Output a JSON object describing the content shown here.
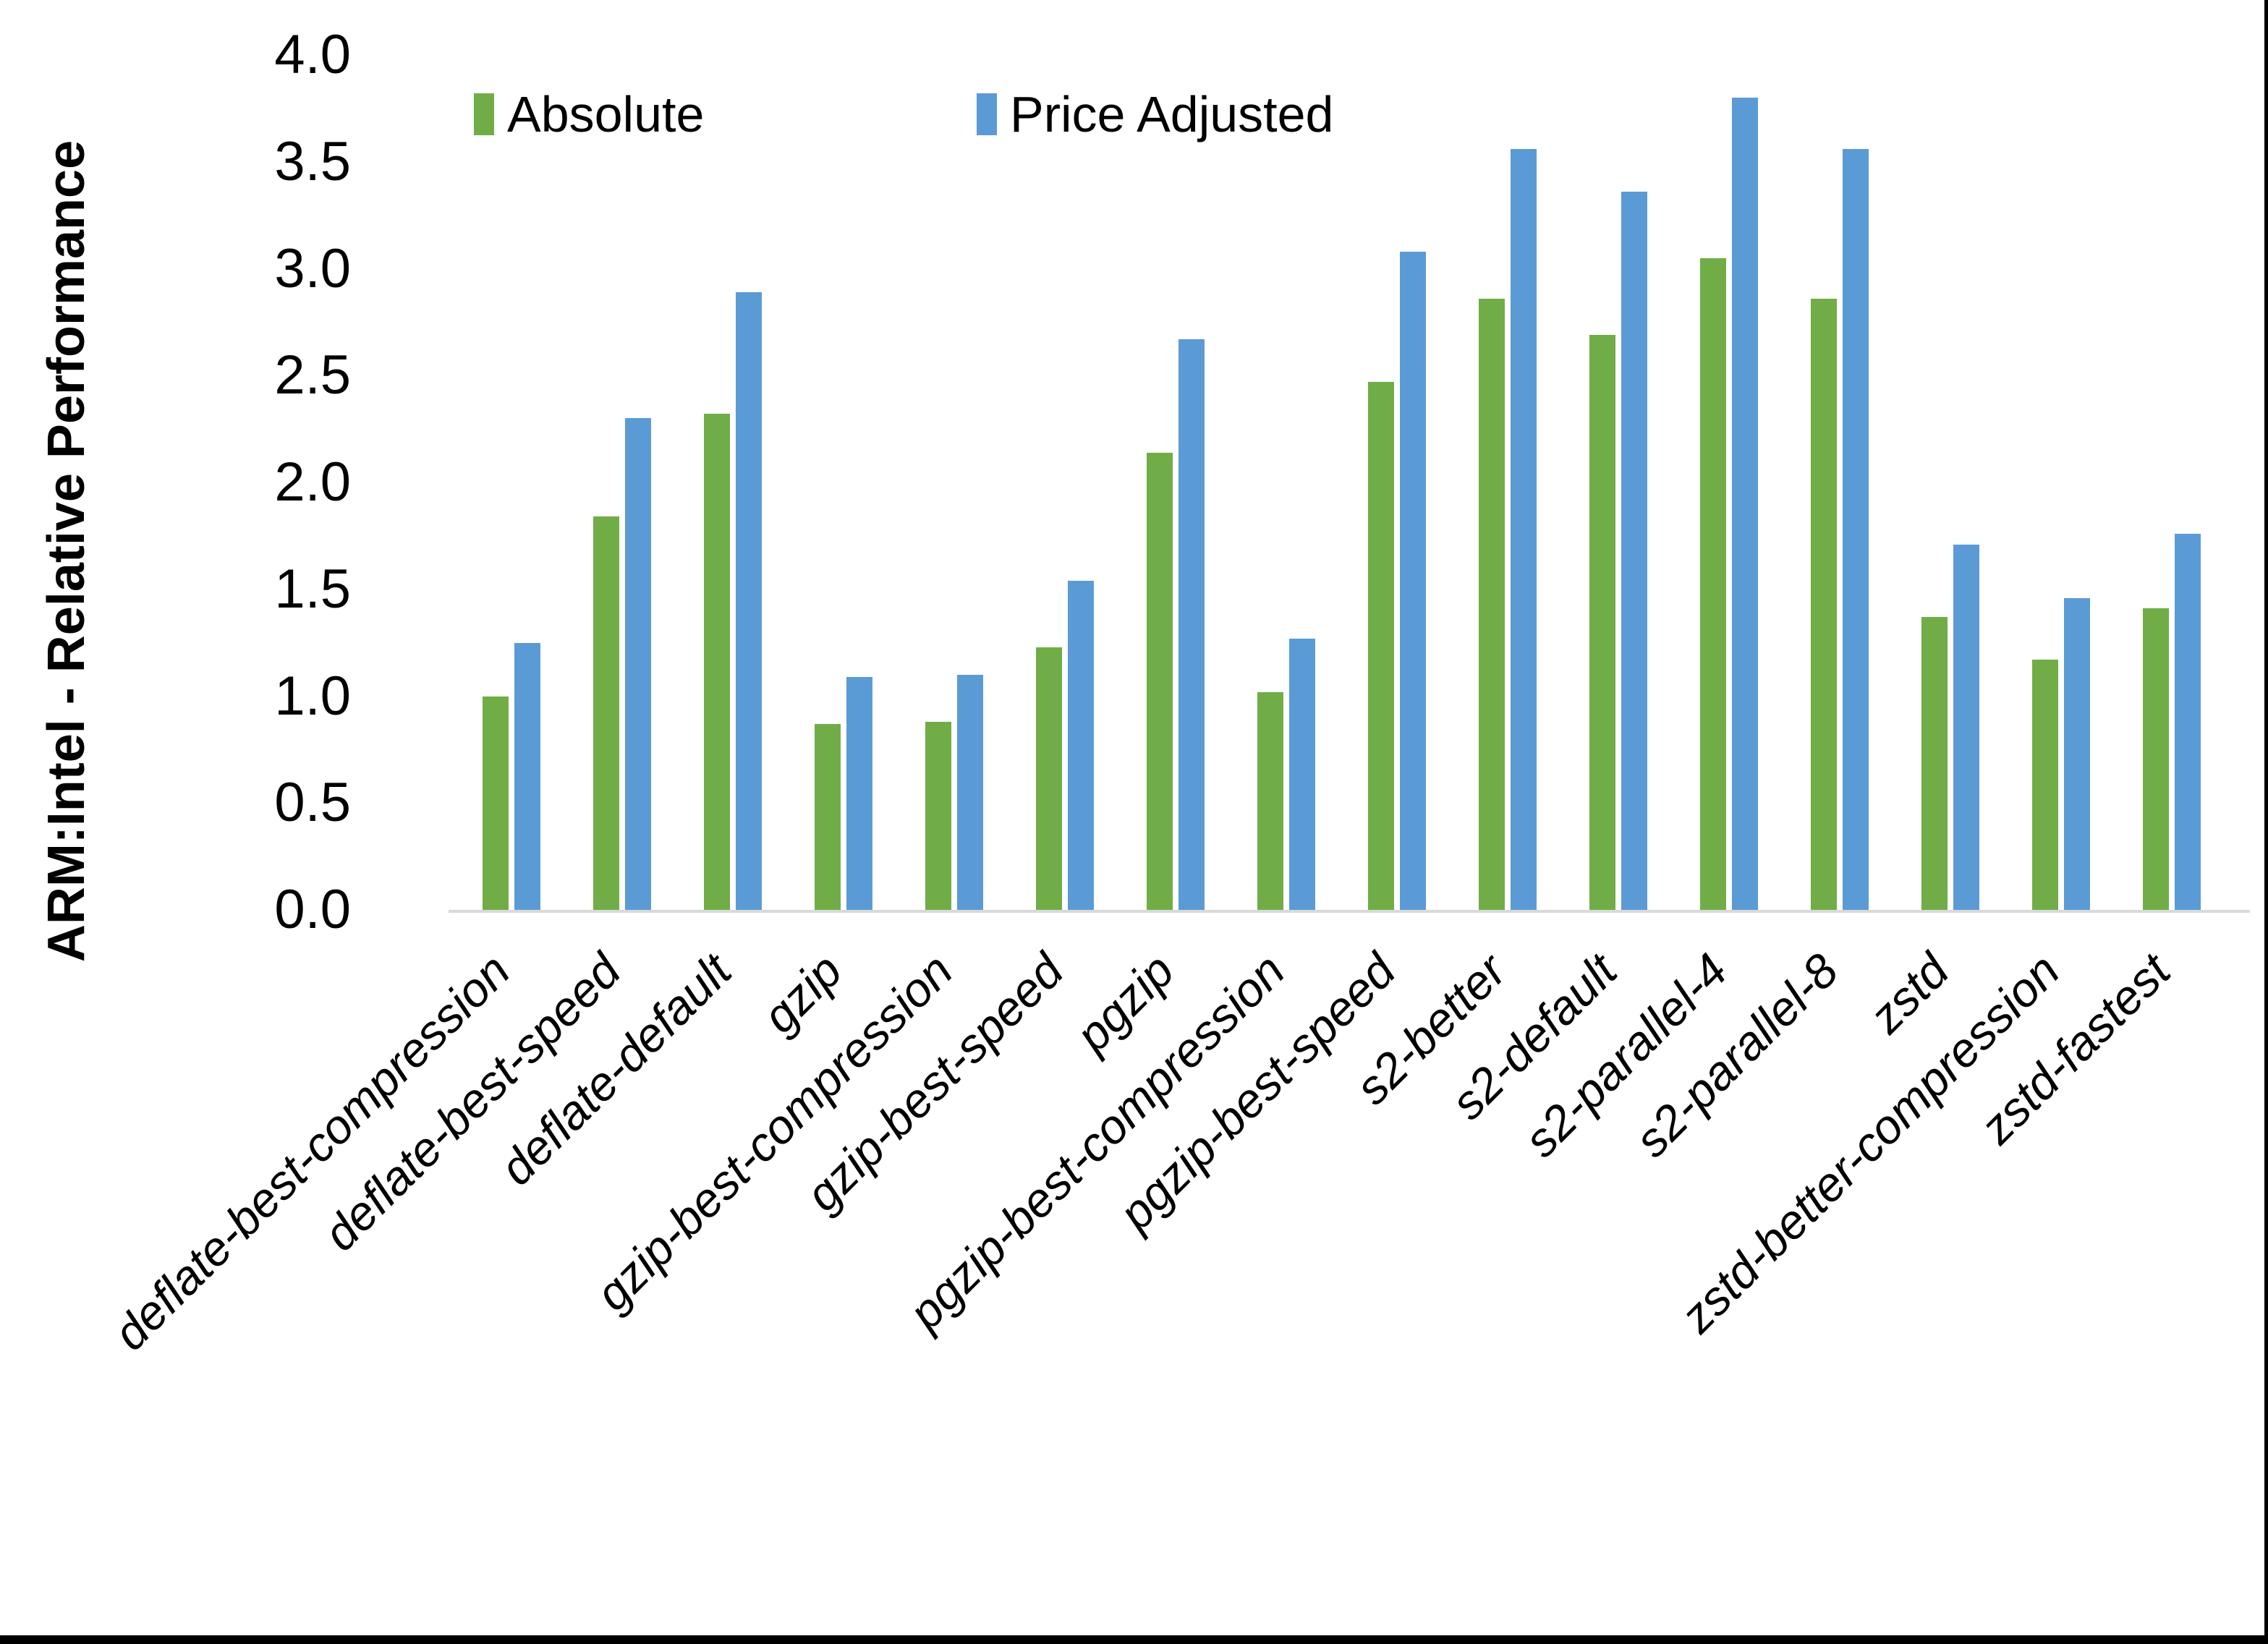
{
  "chart_data": {
    "type": "bar",
    "title": "",
    "ylabel": "ARM:Intel - Relative Performance",
    "xlabel": "",
    "ylim": [
      0.0,
      4.0
    ],
    "ytick_step": 0.5,
    "ytick_labels": [
      "0.0",
      "0.5",
      "1.0",
      "1.5",
      "2.0",
      "2.5",
      "3.0",
      "3.5",
      "4.0"
    ],
    "grid": false,
    "legend_position": "top-center",
    "categories": [
      "deflate-best-compression",
      "deflate-best-speed",
      "deflate-default",
      "gzip",
      "gzip-best-compression",
      "gzip-best-speed",
      "pgzip",
      "pgzip-best-compression",
      "pgzip-best-speed",
      "s2-better",
      "s2-default",
      "s2-parallel-4",
      "s2-parallel-8",
      "zstd",
      "zstd-better-compression",
      "zstd-fastest"
    ],
    "series": [
      {
        "name": "Absolute",
        "color": "#70AD47",
        "values": [
          1.0,
          1.84,
          2.32,
          0.87,
          0.88,
          1.23,
          2.14,
          1.02,
          2.47,
          2.86,
          2.69,
          3.05,
          2.86,
          1.37,
          1.17,
          1.41
        ]
      },
      {
        "name": "Price Adjusted",
        "color": "#5B9BD5",
        "values": [
          1.25,
          2.3,
          2.89,
          1.09,
          1.1,
          1.54,
          2.67,
          1.27,
          3.08,
          3.56,
          3.36,
          3.8,
          3.56,
          1.71,
          1.46,
          1.76
        ]
      }
    ],
    "colors": {
      "absolute": "#70AD47",
      "price_adjusted": "#5B9BD5",
      "axis_line": "#D9D9D9",
      "text": "#000000",
      "background": "#FFFFFF",
      "frame": "#000000"
    }
  }
}
